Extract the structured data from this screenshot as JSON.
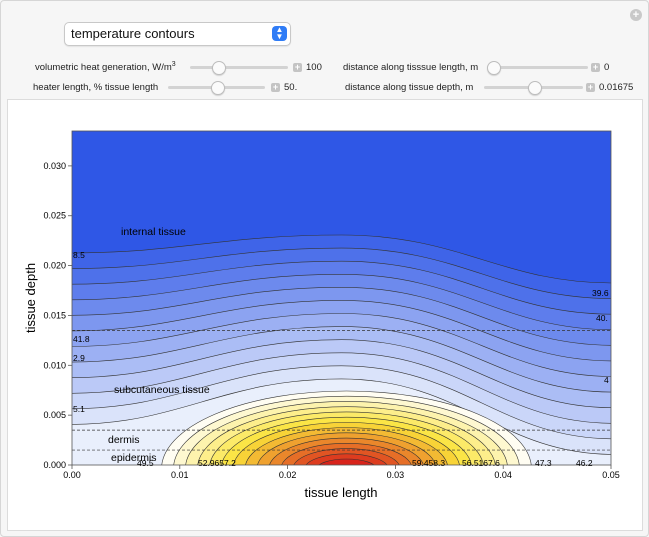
{
  "dropdown": {
    "selected": "temperature contours"
  },
  "controls": {
    "heat_generation": {
      "label_main": "volumetric heat generation, W/m",
      "label_sup": "3",
      "value": "100",
      "fraction": 0.25
    },
    "distance_length": {
      "label": "distance along tisssue length, m",
      "value": "0",
      "fraction": 0.0
    },
    "heater_length": {
      "label": "heater length, % tissue length",
      "value": "50.",
      "fraction": 0.5
    },
    "distance_depth": {
      "label": "distance along tissue depth, m",
      "value": "0.01675",
      "fraction": 0.5
    }
  },
  "chart_data": {
    "type": "contour",
    "xlabel": "tissue length",
    "ylabel": "tissue depth",
    "xlim": [
      0.0,
      0.05
    ],
    "ylim": [
      0.0,
      0.0335
    ],
    "x_ticks": [
      "0.00",
      "0.01",
      "0.02",
      "0.03",
      "0.04",
      "0.05"
    ],
    "y_ticks": [
      "0.000",
      "0.005",
      "0.010",
      "0.015",
      "0.020",
      "0.025",
      "0.030"
    ],
    "layer_boundaries_depth": [
      0.0015,
      0.0035,
      0.0135
    ],
    "layer_labels": [
      {
        "text": "internal tissue"
      },
      {
        "text": "subcutaneous tissue"
      },
      {
        "text": "dermis"
      },
      {
        "text": "epidermis"
      }
    ],
    "contour_labels": [
      "8.5",
      "41.8",
      "2.9",
      "5.1",
      "39.6",
      "40.",
      "4",
      "49.5",
      "52.9657.2",
      "59.458.3",
      "56.5167.6",
      "47.3",
      "46.2"
    ],
    "colors": {
      "low": "#2f57e6",
      "mid": "#ffffff",
      "high_yellow": "#fbe33a",
      "high_red": "#d8231b"
    }
  }
}
